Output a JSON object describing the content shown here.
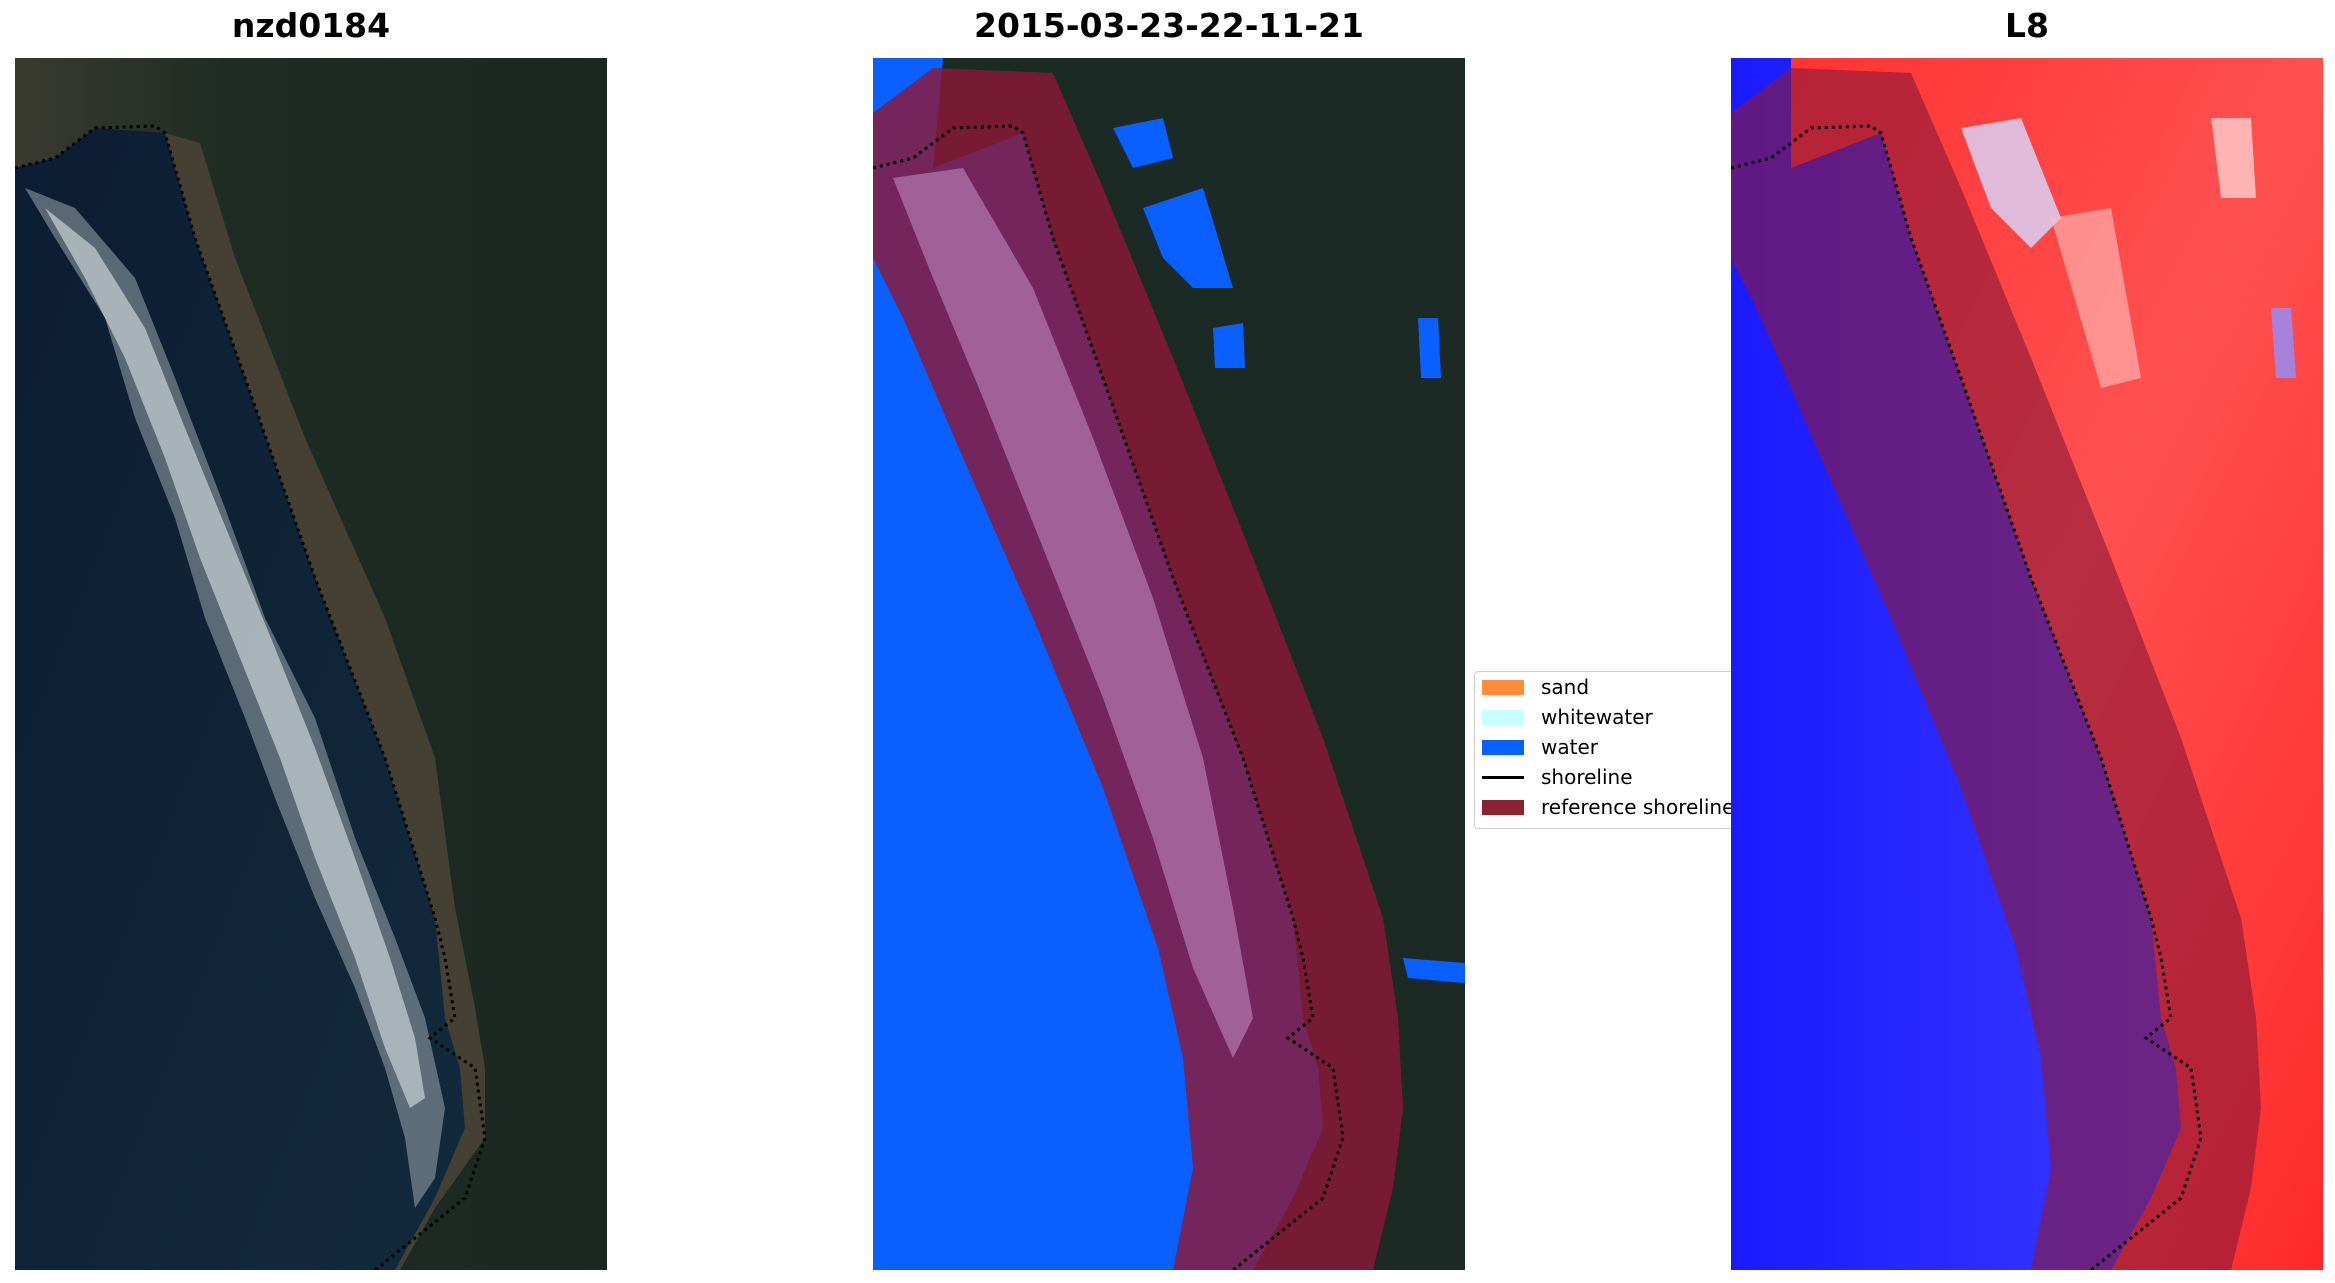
{
  "panels": [
    {
      "title": "nzd0184"
    },
    {
      "title": "2015-03-23-22-11-21"
    },
    {
      "title": "L8"
    }
  ],
  "legend": {
    "items": [
      {
        "label": "sand",
        "color": "#ff8c3a",
        "kind": "patch"
      },
      {
        "label": "whitewater",
        "color": "#c8ffff",
        "kind": "patch"
      },
      {
        "label": "water",
        "color": "#0a5fff",
        "kind": "patch"
      },
      {
        "label": "shoreline",
        "color": "#000000",
        "kind": "line"
      },
      {
        "label": "reference shoreline",
        "color": "#8b2232",
        "kind": "patch"
      }
    ]
  },
  "colors": {
    "sea_dark": "#0d2034",
    "land_dark": "#1a2a22",
    "water_class": "#0a5fff",
    "buffer_overlay": "#8b1838",
    "index_blue": "#1a1aff",
    "index_red": "#ff2a2a"
  }
}
